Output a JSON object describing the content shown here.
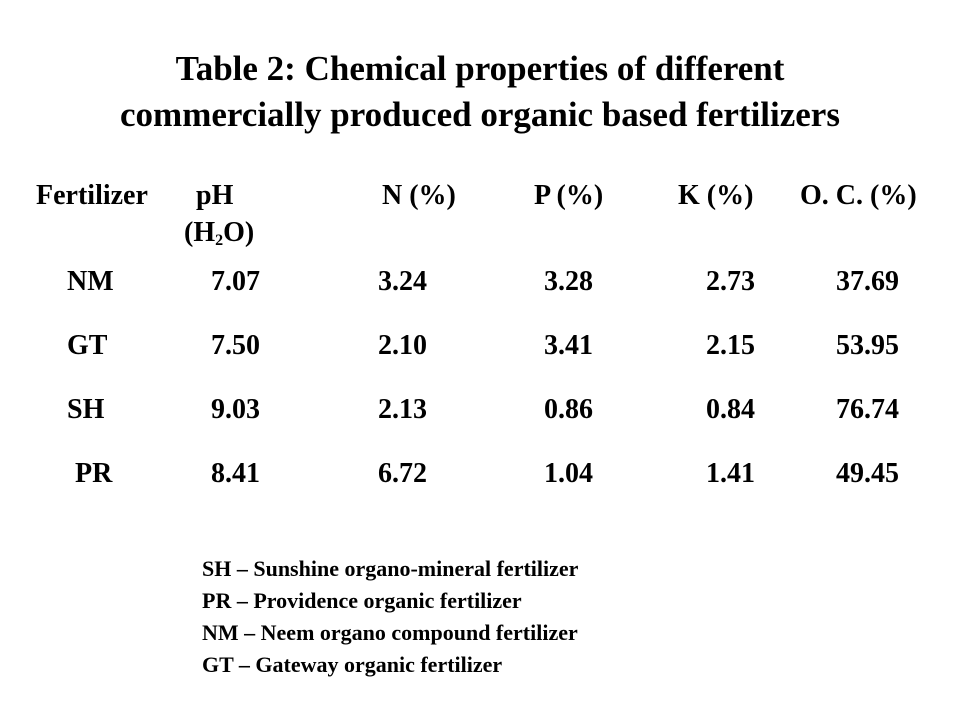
{
  "title": {
    "line1": "Table 2: Chemical properties of different",
    "line2": "commercially produced organic based fertilizers"
  },
  "table": {
    "headers": {
      "fertilizer": "Fertilizer",
      "ph": "pH",
      "ph_unit_open": "(H",
      "ph_unit_sub": "2",
      "ph_unit_close": "O)",
      "n": "N (%)",
      "p": "P (%)",
      "k": "K (%)",
      "oc": "O. C. (%)"
    },
    "rows": [
      {
        "fertilizer": "NM",
        "ph": "7.07",
        "n": "3.24",
        "p": "3.28",
        "k": "2.73",
        "oc": "37.69"
      },
      {
        "fertilizer": "GT",
        "ph": "7.50",
        "n": "2.10",
        "p": "3.41",
        "k": "2.15",
        "oc": "53.95"
      },
      {
        "fertilizer": "SH",
        "ph": "9.03",
        "n": "2.13",
        "p": "0.86",
        "k": "0.84",
        "oc": "76.74"
      },
      {
        "fertilizer": "PR",
        "ph": "8.41",
        "n": "6.72",
        "p": "1.04",
        "k": "1.41",
        "oc": "49.45"
      }
    ]
  },
  "legend": [
    "SH – Sunshine organo-mineral fertilizer",
    "PR – Providence organic fertilizer",
    "NM – Neem organo compound fertilizer",
    "GT – Gateway organic fertilizer"
  ]
}
